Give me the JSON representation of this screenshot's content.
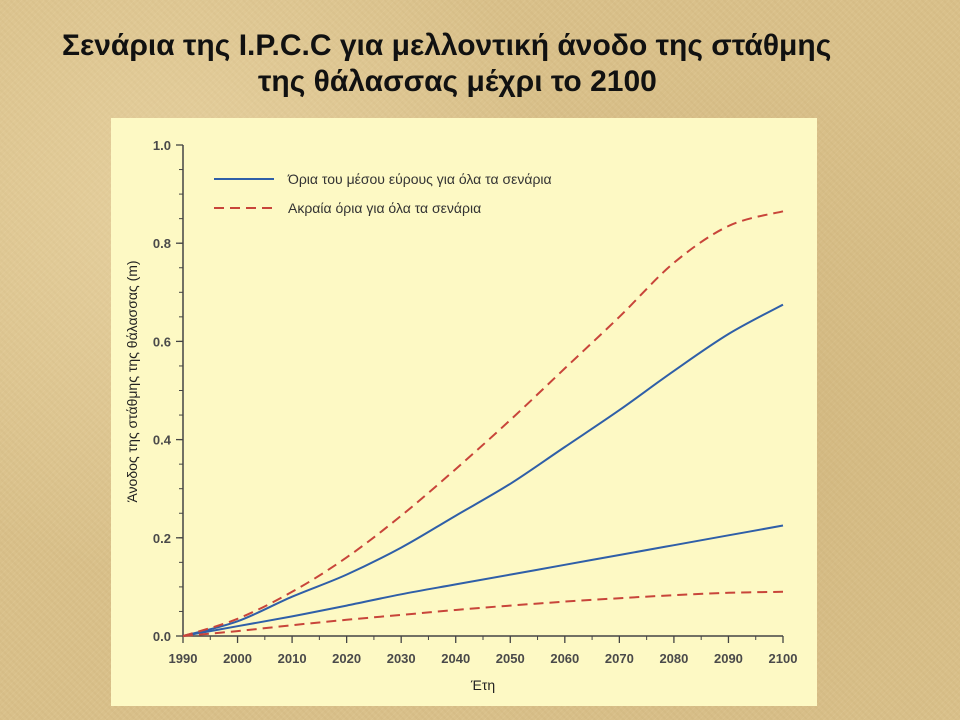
{
  "slide": {
    "title_line1": "Σενάρια της I.P.C.C για μελλοντική άνοδο της στάθμης",
    "title_line2": "της θάλασσας μέχρι το 2100"
  },
  "chart_data": {
    "type": "line",
    "xlabel": "Έτη",
    "ylabel": "Άνοδος της στάθμης της θάλασσας (m)",
    "xlim": [
      1990,
      2100
    ],
    "ylim": [
      0,
      1.0
    ],
    "x_ticks": [
      1990,
      2000,
      2010,
      2020,
      2030,
      2040,
      2050,
      2060,
      2070,
      2080,
      2090,
      2100
    ],
    "y_ticks": [
      "0.0",
      "0.2",
      "0.4",
      "0.6",
      "0.8",
      "1.0"
    ],
    "legend_position": "top-left",
    "grid": false,
    "x": [
      1990,
      2000,
      2010,
      2020,
      2030,
      2040,
      2050,
      2060,
      2070,
      2080,
      2090,
      2100
    ],
    "series": [
      {
        "name": "Όρια του μέσου εύρους για όλα τα σενάρια",
        "legend_group": 0,
        "style": "solid",
        "color": "#2f5fa8",
        "values": [
          0,
          0.03,
          0.08,
          0.125,
          0.18,
          0.245,
          0.31,
          0.385,
          0.46,
          0.54,
          0.615,
          0.675
        ]
      },
      {
        "name": "Όρια του μέσου εύρους για όλα τα σενάρια",
        "legend_group": 0,
        "style": "solid",
        "color": "#2f5fa8",
        "values": [
          0,
          0.02,
          0.04,
          0.062,
          0.085,
          0.105,
          0.125,
          0.145,
          0.165,
          0.185,
          0.205,
          0.225
        ]
      },
      {
        "name": "Ακραία όρια για όλα τα σενάρια",
        "legend_group": 1,
        "style": "dashed",
        "color": "#c8453a",
        "values": [
          0,
          0.035,
          0.09,
          0.16,
          0.245,
          0.34,
          0.44,
          0.545,
          0.65,
          0.76,
          0.835,
          0.865
        ]
      },
      {
        "name": "Ακραία όρια για όλα τα σενάρια",
        "legend_group": 1,
        "style": "dashed",
        "color": "#c8453a",
        "values": [
          0,
          0.01,
          0.022,
          0.033,
          0.043,
          0.053,
          0.062,
          0.07,
          0.077,
          0.083,
          0.088,
          0.09
        ]
      }
    ]
  }
}
